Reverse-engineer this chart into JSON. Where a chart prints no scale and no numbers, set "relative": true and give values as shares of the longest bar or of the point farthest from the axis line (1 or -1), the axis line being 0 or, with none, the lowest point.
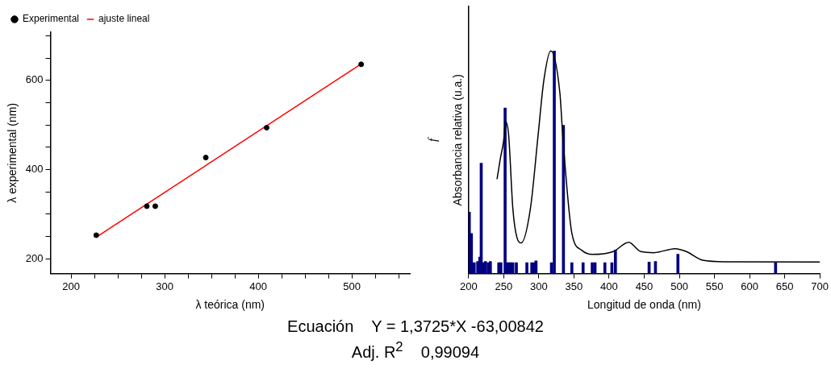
{
  "chart_data": [
    {
      "type": "scatter",
      "xlabel": "λ teórica (nm)",
      "ylabel": "λ experimental (nm)",
      "xlim": [
        178,
        562
      ],
      "ylim": [
        167,
        708
      ],
      "xticks": [
        200,
        {
          "value": 225,
          "label": null
        },
        {
          "value": 250,
          "label": null
        },
        {
          "value": 275,
          "label": null
        },
        300,
        {
          "value": 325,
          "label": null
        },
        {
          "value": 350,
          "label": null
        },
        {
          "value": 375,
          "label": null
        },
        400,
        {
          "value": 425,
          "label": null
        },
        {
          "value": 450,
          "label": null
        },
        {
          "value": 475,
          "label": null
        },
        500,
        {
          "value": 525,
          "label": null
        },
        {
          "value": 550,
          "label": null
        }
      ],
      "yticks": [
        200,
        {
          "value": 250,
          "label": null
        },
        {
          "value": 300,
          "label": null
        },
        {
          "value": 350,
          "label": null
        },
        400,
        {
          "value": 450,
          "label": null
        },
        {
          "value": 500,
          "label": null
        },
        {
          "value": 550,
          "label": null
        },
        600,
        {
          "value": 650,
          "label": null
        },
        {
          "value": 700,
          "label": null
        }
      ],
      "legend": "top left",
      "grid": false,
      "series": [
        {
          "name": "Experimental",
          "color": "#000000",
          "marker": "circle",
          "x": [
            227,
            281,
            290,
            344,
            409,
            510
          ],
          "values": [
            253,
            318,
            318,
            427,
            494,
            636
          ]
        },
        {
          "name": "ajuste lineal",
          "type": "line",
          "color": "#ff0000",
          "marker": "none",
          "x": [
            228,
            510
          ],
          "values": [
            250,
            637
          ]
        }
      ],
      "annotations": [
        "Ecuación    Y = 1,3725*X -63,00842",
        "Adj. R$^{2}$    0,99094"
      ]
    },
    {
      "type": "bar",
      "relative": true,
      "xlabel": "Longitud de onda (nm)",
      "ylabel": "Absorbancia relativa (u.a.)",
      "y2label": "f",
      "xlim": [
        200,
        700
      ],
      "xticks": [
        200,
        250,
        300,
        350,
        400,
        450,
        500,
        550,
        600,
        650,
        700
      ],
      "legend": false,
      "grid": false,
      "series": [
        {
          "type": "line",
          "color": "#000000",
          "marker": "none",
          "x": [
            240.5,
            245,
            250,
            252.5,
            257,
            263,
            269,
            275,
            288,
            299,
            307,
            317,
            330,
            334,
            347,
            361,
            376,
            406,
            428,
            445,
            464,
            494,
            510,
            533,
            567,
            700
          ],
          "values": [
            0.424,
            0.513,
            0.6,
            0.683,
            0.623,
            0.292,
            0.16,
            0.138,
            0.292,
            0.623,
            0.865,
            1.0,
            0.81,
            0.623,
            0.182,
            0.105,
            0.086,
            0.099,
            0.141,
            0.099,
            0.094,
            0.112,
            0.099,
            0.06,
            0.053,
            0.052
          ]
        },
        {
          "axis": "y2",
          "color": "#000080",
          "x": [
            201,
            204,
            208,
            213,
            216,
            218,
            221,
            224,
            228,
            231,
            243,
            246,
            252,
            255,
            257,
            260,
            263,
            268,
            283,
            290,
            293,
            296,
            318,
            322,
            335,
            347,
            363,
            376,
            380,
            394,
            404,
            409,
            457,
            466,
            498,
            637
          ],
          "values": [
            0.276,
            0.18,
            0.049,
            0.054,
            0.074,
            0.496,
            0.049,
            0.054,
            0.049,
            0.054,
            0.049,
            0.049,
            0.744,
            0.049,
            0.049,
            0.049,
            0.049,
            0.049,
            0.049,
            0.049,
            0.049,
            0.057,
            0.049,
            1.0,
            0.666,
            0.049,
            0.049,
            0.049,
            0.049,
            0.049,
            0.049,
            0.106,
            0.052,
            0.054,
            0.087,
            0.049
          ]
        }
      ]
    }
  ]
}
